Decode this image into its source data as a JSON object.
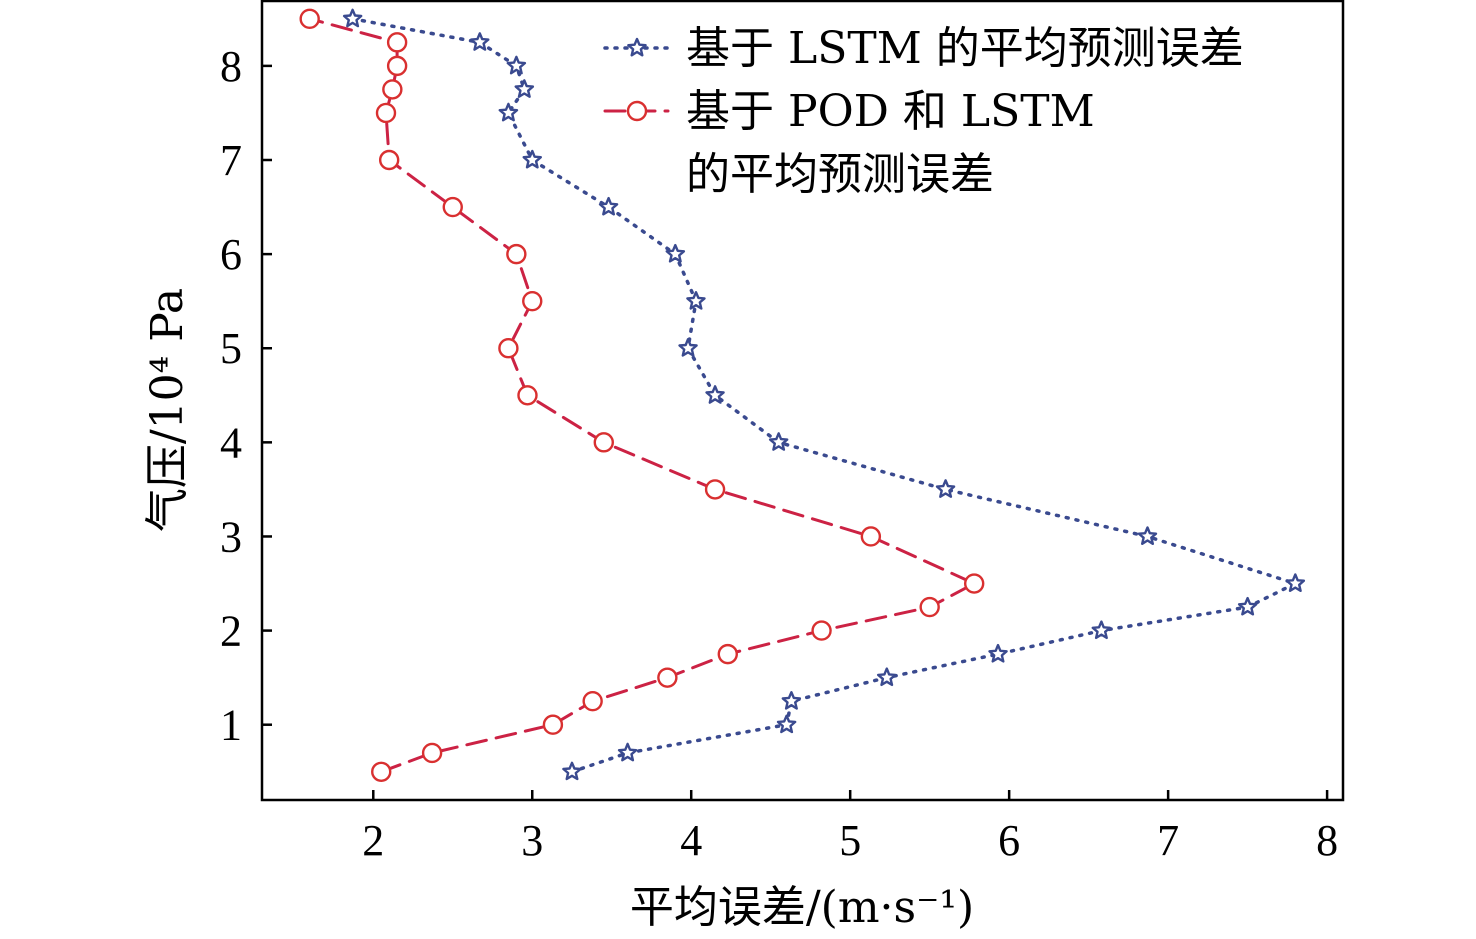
{
  "chart_data": {
    "type": "line",
    "orientation": "horizontal-profile",
    "xlabel": "平均误差/(m·s⁻¹)",
    "ylabel": "气压/10⁴ Pa",
    "xlim": [
      1.3,
      8.1
    ],
    "ylim": [
      0.2,
      8.7
    ],
    "xticks": [
      2,
      3,
      4,
      5,
      6,
      7,
      8
    ],
    "yticks": [
      1,
      2,
      3,
      4,
      5,
      6,
      7,
      8
    ],
    "grid": false,
    "legend_position": "top-right",
    "series": [
      {
        "name_lines": [
          "基于 LSTM 的平均预测误差"
        ],
        "marker": "star",
        "line_style": "dotted",
        "color": "#3a4a8f",
        "points": [
          {
            "x": 3.25,
            "y": 0.5
          },
          {
            "x": 3.6,
            "y": 0.7
          },
          {
            "x": 4.6,
            "y": 1.0
          },
          {
            "x": 4.63,
            "y": 1.25
          },
          {
            "x": 5.23,
            "y": 1.5
          },
          {
            "x": 5.93,
            "y": 1.75
          },
          {
            "x": 6.58,
            "y": 2.0
          },
          {
            "x": 7.5,
            "y": 2.25
          },
          {
            "x": 7.8,
            "y": 2.5
          },
          {
            "x": 6.87,
            "y": 3.0
          },
          {
            "x": 5.6,
            "y": 3.5
          },
          {
            "x": 4.55,
            "y": 4.0
          },
          {
            "x": 4.15,
            "y": 4.5
          },
          {
            "x": 3.98,
            "y": 5.0
          },
          {
            "x": 4.03,
            "y": 5.5
          },
          {
            "x": 3.9,
            "y": 6.0
          },
          {
            "x": 3.48,
            "y": 6.5
          },
          {
            "x": 3.0,
            "y": 7.0
          },
          {
            "x": 2.85,
            "y": 7.5
          },
          {
            "x": 2.95,
            "y": 7.75
          },
          {
            "x": 2.9,
            "y": 8.0
          },
          {
            "x": 2.67,
            "y": 8.25
          },
          {
            "x": 1.87,
            "y": 8.5
          }
        ]
      },
      {
        "name_lines": [
          "基于 POD 和 LSTM",
          "的平均预测误差"
        ],
        "marker": "circle",
        "line_style": "dashed",
        "color": "#cc2244",
        "marker_color": "#d93030",
        "points": [
          {
            "x": 2.05,
            "y": 0.5
          },
          {
            "x": 2.37,
            "y": 0.7
          },
          {
            "x": 3.13,
            "y": 1.0
          },
          {
            "x": 3.38,
            "y": 1.25
          },
          {
            "x": 3.85,
            "y": 1.5
          },
          {
            "x": 4.23,
            "y": 1.75
          },
          {
            "x": 4.82,
            "y": 2.0
          },
          {
            "x": 5.5,
            "y": 2.25
          },
          {
            "x": 5.78,
            "y": 2.5
          },
          {
            "x": 5.13,
            "y": 3.0
          },
          {
            "x": 4.15,
            "y": 3.5
          },
          {
            "x": 3.45,
            "y": 4.0
          },
          {
            "x": 2.97,
            "y": 4.5
          },
          {
            "x": 2.85,
            "y": 5.0
          },
          {
            "x": 3.0,
            "y": 5.5
          },
          {
            "x": 2.9,
            "y": 6.0
          },
          {
            "x": 2.5,
            "y": 6.5
          },
          {
            "x": 2.1,
            "y": 7.0
          },
          {
            "x": 2.08,
            "y": 7.5
          },
          {
            "x": 2.12,
            "y": 7.75
          },
          {
            "x": 2.15,
            "y": 8.0
          },
          {
            "x": 2.15,
            "y": 8.25
          },
          {
            "x": 1.6,
            "y": 8.5
          }
        ]
      }
    ]
  }
}
